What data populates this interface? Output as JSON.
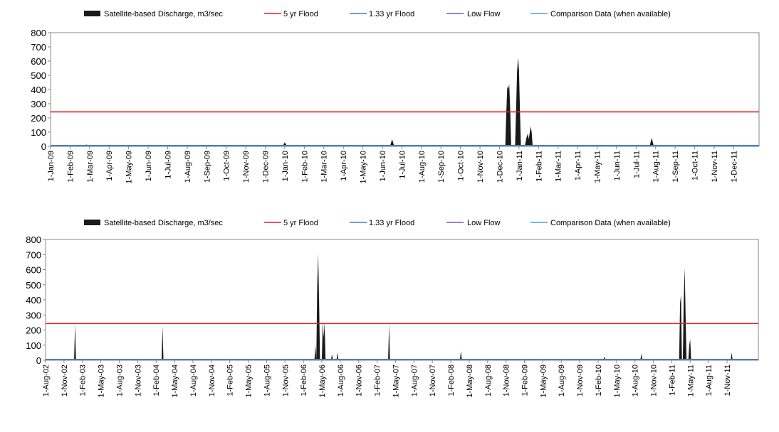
{
  "colors": {
    "discharge": "#1a1a1a",
    "flood_5yr": "#e0201c",
    "flood_133yr": "#4a7ebb",
    "low_flow": "#7e57a8",
    "comparison": "#46aac5",
    "plot_border": "#888888"
  },
  "chart_data": [
    {
      "type": "area",
      "legend": {
        "placement": "top",
        "items": [
          {
            "label": "Satellite-based Discharge, m3/sec",
            "kind": "area",
            "color": "#1a1a1a"
          },
          {
            "label": "5 yr Flood",
            "kind": "line",
            "color": "#e0201c"
          },
          {
            "label": "1.33 yr Flood",
            "kind": "line",
            "color": "#4a7ebb"
          },
          {
            "label": "Low Flow",
            "kind": "line",
            "color": "#7e57a8"
          },
          {
            "label": "Comparison Data (when available)",
            "kind": "line",
            "color": "#46aac5"
          }
        ]
      },
      "ylim": [
        0,
        800
      ],
      "yticks": [
        "0",
        "100",
        "200",
        "300",
        "400",
        "500",
        "600",
        "700",
        "800"
      ],
      "xticks": [
        "1-Jan-09",
        "1-Feb-09",
        "1-Mar-09",
        "1-Apr-09",
        "1-May-09",
        "1-Jun-09",
        "1-Jul-09",
        "1-Aug-09",
        "1-Sep-09",
        "1-Oct-09",
        "1-Nov-09",
        "1-Dec-09",
        "1-Jan-10",
        "1-Feb-10",
        "1-Mar-10",
        "1-Apr-10",
        "1-May-10",
        "1-Jun-10",
        "1-Jul-10",
        "1-Aug-10",
        "1-Sep-10",
        "1-Oct-10",
        "1-Nov-10",
        "1-Dec-10",
        "1-Jan-11",
        "1-Feb-11",
        "1-Mar-11",
        "1-Apr-11",
        "1-May-11",
        "1-Jun-11",
        "1-Jul-11",
        "1-Aug-11",
        "1-Sep-11",
        "1-Oct-11",
        "1-Nov-11",
        "1-Dec-11"
      ],
      "x_span": [
        0,
        36.3
      ],
      "flood_5yr": 243,
      "flood_133yr": 5,
      "low_flow": 3,
      "series": [
        {
          "points": [
            [
              0,
              5
            ],
            [
              1.8,
              5
            ],
            [
              1.85,
              14
            ],
            [
              1.9,
              5
            ],
            [
              11.9,
              5
            ],
            [
              12.0,
              28
            ],
            [
              12.1,
              5
            ],
            [
              17.4,
              5
            ],
            [
              17.5,
              50
            ],
            [
              17.6,
              5
            ],
            [
              23.3,
              5
            ],
            [
              23.35,
              240
            ],
            [
              23.4,
              420
            ],
            [
              23.45,
              405
            ],
            [
              23.5,
              440
            ],
            [
              23.55,
              260
            ],
            [
              23.6,
              0
            ],
            [
              23.8,
              0
            ],
            [
              23.85,
              250
            ],
            [
              23.9,
              520
            ],
            [
              23.95,
              625
            ],
            [
              24.0,
              540
            ],
            [
              24.05,
              250
            ],
            [
              24.1,
              0
            ],
            [
              24.3,
              0
            ],
            [
              24.38,
              60
            ],
            [
              24.45,
              90
            ],
            [
              24.5,
              50
            ],
            [
              24.55,
              95
            ],
            [
              24.6,
              140
            ],
            [
              24.65,
              100
            ],
            [
              24.7,
              0
            ],
            [
              24.8,
              5
            ],
            [
              30.7,
              5
            ],
            [
              30.8,
              60
            ],
            [
              30.9,
              5
            ],
            [
              36.3,
              5
            ]
          ]
        }
      ]
    },
    {
      "type": "area",
      "legend": {
        "placement": "top",
        "items": [
          {
            "label": "Satellite-based Discharge, m3/sec",
            "kind": "area",
            "color": "#1a1a1a"
          },
          {
            "label": "5 yr Flood",
            "kind": "line",
            "color": "#e0201c"
          },
          {
            "label": "1.33 yr Flood",
            "kind": "line",
            "color": "#4a7ebb"
          },
          {
            "label": "Low Flow",
            "kind": "line",
            "color": "#7e57a8"
          },
          {
            "label": "Comparison Data (when available)",
            "kind": "line",
            "color": "#46aac5"
          }
        ]
      },
      "ylim": [
        0,
        800
      ],
      "yticks": [
        "0",
        "100",
        "200",
        "300",
        "400",
        "500",
        "600",
        "700",
        "800"
      ],
      "xticks": [
        "1-Aug-02",
        "1-Nov-02",
        "1-Feb-03",
        "1-May-03",
        "1-Aug-03",
        "1-Nov-03",
        "1-Feb-04",
        "1-May-04",
        "1-Aug-04",
        "1-Nov-04",
        "1-Feb-05",
        "1-May-05",
        "1-Aug-05",
        "1-Nov-05",
        "1-Feb-06",
        "1-May-06",
        "1-Aug-06",
        "1-Nov-06",
        "1-Feb-07",
        "1-May-07",
        "1-Aug-07",
        "1-Nov-07",
        "1-Feb-08",
        "1-May-08",
        "1-Aug-08",
        "1-Nov-08",
        "1-Feb-09",
        "1-May-09",
        "1-Aug-09",
        "1-Nov-09",
        "1-Feb-10",
        "1-May-10",
        "1-Aug-10",
        "1-Nov-10",
        "1-Feb-11",
        "1-May-11",
        "1-Aug-11",
        "1-Nov-11"
      ],
      "x_span": [
        0,
        38.7
      ],
      "flood_5yr": 243,
      "flood_133yr": 5,
      "low_flow": 3,
      "series": [
        {
          "points": [
            [
              0,
              5
            ],
            [
              1.55,
              5
            ],
            [
              1.6,
              240
            ],
            [
              1.65,
              5
            ],
            [
              6.3,
              5
            ],
            [
              6.35,
              225
            ],
            [
              6.4,
              5
            ],
            [
              14.6,
              5
            ],
            [
              14.65,
              100
            ],
            [
              14.7,
              5
            ],
            [
              14.75,
              500
            ],
            [
              14.8,
              710
            ],
            [
              14.85,
              400
            ],
            [
              14.9,
              5
            ],
            [
              15.0,
              5
            ],
            [
              15.05,
              260
            ],
            [
              15.1,
              150
            ],
            [
              15.15,
              250
            ],
            [
              15.2,
              5
            ],
            [
              15.5,
              5
            ],
            [
              15.55,
              40
            ],
            [
              15.6,
              5
            ],
            [
              15.8,
              5
            ],
            [
              15.85,
              50
            ],
            [
              15.9,
              5
            ],
            [
              18.6,
              5
            ],
            [
              18.65,
              240
            ],
            [
              18.7,
              5
            ],
            [
              22.5,
              5
            ],
            [
              22.55,
              60
            ],
            [
              22.6,
              5
            ],
            [
              30.3,
              5
            ],
            [
              30.35,
              25
            ],
            [
              30.4,
              5
            ],
            [
              32.3,
              5
            ],
            [
              32.35,
              45
            ],
            [
              32.4,
              5
            ],
            [
              34.4,
              5
            ],
            [
              34.45,
              380
            ],
            [
              34.5,
              430
            ],
            [
              34.55,
              5
            ],
            [
              34.6,
              5
            ],
            [
              34.65,
              400
            ],
            [
              34.7,
              615
            ],
            [
              34.75,
              300
            ],
            [
              34.8,
              5
            ],
            [
              34.9,
              5
            ],
            [
              34.95,
              100
            ],
            [
              35.0,
              140
            ],
            [
              35.05,
              5
            ],
            [
              37.2,
              5
            ],
            [
              37.25,
              50
            ],
            [
              37.3,
              5
            ],
            [
              38.7,
              5
            ]
          ]
        }
      ]
    }
  ]
}
